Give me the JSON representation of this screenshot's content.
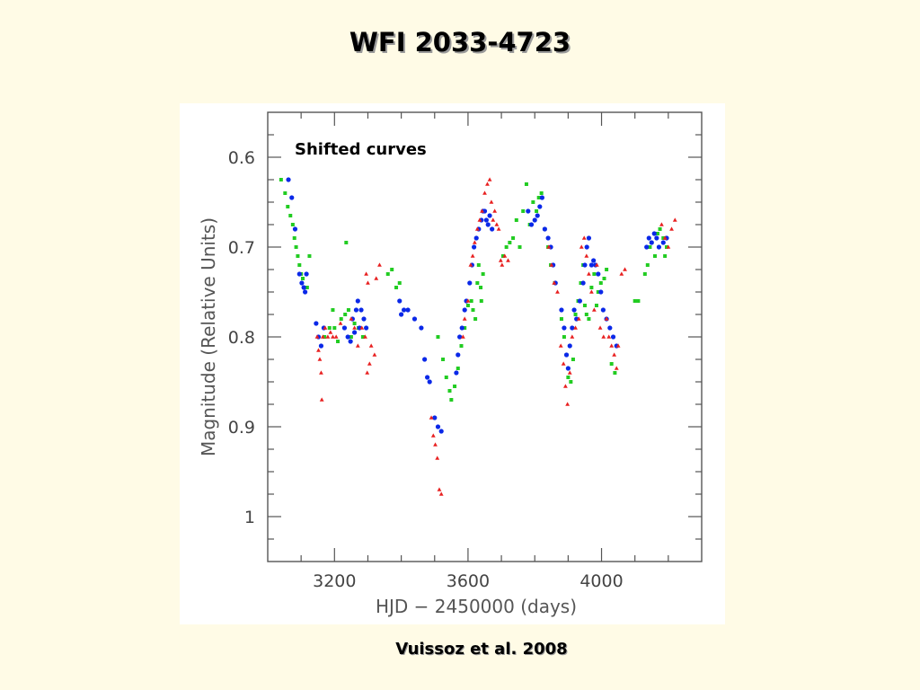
{
  "slide": {
    "title": "WFI 2033-4723",
    "citation": "Vuissoz et al. 2008"
  },
  "chart_data": {
    "type": "scatter",
    "title": "",
    "annotation": "Shifted curves",
    "xlabel": "HJD − 2450000 (days)",
    "ylabel": "Magnitude (Relative Units)",
    "xlim": [
      3000,
      4300
    ],
    "ylim": [
      0.55,
      1.05
    ],
    "y_inverted": true,
    "x_ticks": [
      3200,
      3600,
      4000
    ],
    "x_tick_labels": [
      "3200",
      "3600",
      "4000"
    ],
    "y_ticks": [
      0.6,
      0.7,
      0.8,
      0.9,
      1.0
    ],
    "y_tick_labels": [
      "0.6",
      "0.7",
      "0.8",
      "0.9",
      "1"
    ],
    "grid": false,
    "legend": "none",
    "series": [
      {
        "color": "#22cc22",
        "marker": "square",
        "points": [
          [
            3040,
            0.625
          ],
          [
            3052,
            0.64
          ],
          [
            3060,
            0.655
          ],
          [
            3068,
            0.665
          ],
          [
            3075,
            0.675
          ],
          [
            3080,
            0.69
          ],
          [
            3085,
            0.7
          ],
          [
            3090,
            0.71
          ],
          [
            3095,
            0.72
          ],
          [
            3100,
            0.73
          ],
          [
            3105,
            0.735
          ],
          [
            3110,
            0.745
          ],
          [
            3118,
            0.745
          ],
          [
            3125,
            0.71
          ],
          [
            3170,
            0.8
          ],
          [
            3185,
            0.79
          ],
          [
            3195,
            0.77
          ],
          [
            3200,
            0.79
          ],
          [
            3210,
            0.805
          ],
          [
            3220,
            0.78
          ],
          [
            3232,
            0.775
          ],
          [
            3242,
            0.77
          ],
          [
            3250,
            0.8
          ],
          [
            3260,
            0.785
          ],
          [
            3272,
            0.79
          ],
          [
            3285,
            0.8
          ],
          [
            3235,
            0.695
          ],
          [
            3360,
            0.73
          ],
          [
            3372,
            0.725
          ],
          [
            3385,
            0.745
          ],
          [
            3395,
            0.74
          ],
          [
            3510,
            0.8
          ],
          [
            3525,
            0.825
          ],
          [
            3535,
            0.845
          ],
          [
            3545,
            0.86
          ],
          [
            3550,
            0.87
          ],
          [
            3560,
            0.855
          ],
          [
            3570,
            0.835
          ],
          [
            3580,
            0.81
          ],
          [
            3590,
            0.79
          ],
          [
            3600,
            0.765
          ],
          [
            3610,
            0.76
          ],
          [
            3615,
            0.77
          ],
          [
            3622,
            0.78
          ],
          [
            3628,
            0.74
          ],
          [
            3632,
            0.72
          ],
          [
            3638,
            0.745
          ],
          [
            3640,
            0.76
          ],
          [
            3645,
            0.73
          ],
          [
            3705,
            0.71
          ],
          [
            3715,
            0.7
          ],
          [
            3725,
            0.695
          ],
          [
            3735,
            0.69
          ],
          [
            3745,
            0.67
          ],
          [
            3755,
            0.7
          ],
          [
            3765,
            0.66
          ],
          [
            3775,
            0.63
          ],
          [
            3785,
            0.675
          ],
          [
            3795,
            0.65
          ],
          [
            3805,
            0.66
          ],
          [
            3812,
            0.645
          ],
          [
            3820,
            0.64
          ],
          [
            3830,
            0.68
          ],
          [
            3840,
            0.7
          ],
          [
            3848,
            0.72
          ],
          [
            3860,
            0.74
          ],
          [
            3880,
            0.78
          ],
          [
            3888,
            0.8
          ],
          [
            3895,
            0.82
          ],
          [
            3900,
            0.845
          ],
          [
            3908,
            0.85
          ],
          [
            3915,
            0.825
          ],
          [
            3922,
            0.775
          ],
          [
            3930,
            0.76
          ],
          [
            3938,
            0.74
          ],
          [
            3945,
            0.72
          ],
          [
            3950,
            0.765
          ],
          [
            3955,
            0.775
          ],
          [
            3962,
            0.78
          ],
          [
            3970,
            0.745
          ],
          [
            3978,
            0.73
          ],
          [
            3985,
            0.765
          ],
          [
            3990,
            0.75
          ],
          [
            3998,
            0.74
          ],
          [
            4008,
            0.735
          ],
          [
            4015,
            0.725
          ],
          [
            4030,
            0.83
          ],
          [
            4040,
            0.84
          ],
          [
            4100,
            0.76
          ],
          [
            4110,
            0.76
          ],
          [
            4130,
            0.73
          ],
          [
            4138,
            0.72
          ],
          [
            4145,
            0.7
          ],
          [
            4150,
            0.695
          ],
          [
            4160,
            0.71
          ],
          [
            4168,
            0.685
          ],
          [
            4175,
            0.68
          ],
          [
            4185,
            0.69
          ],
          [
            4190,
            0.71
          ],
          [
            4195,
            0.7
          ]
        ]
      },
      {
        "color": "#0a28e8",
        "marker": "circle",
        "points": [
          [
            3062,
            0.625
          ],
          [
            3072,
            0.645
          ],
          [
            3082,
            0.68
          ],
          [
            3095,
            0.73
          ],
          [
            3102,
            0.74
          ],
          [
            3108,
            0.745
          ],
          [
            3112,
            0.75
          ],
          [
            3116,
            0.73
          ],
          [
            3145,
            0.785
          ],
          [
            3152,
            0.8
          ],
          [
            3160,
            0.81
          ],
          [
            3168,
            0.79
          ],
          [
            3230,
            0.79
          ],
          [
            3240,
            0.8
          ],
          [
            3248,
            0.805
          ],
          [
            3254,
            0.78
          ],
          [
            3260,
            0.795
          ],
          [
            3265,
            0.77
          ],
          [
            3270,
            0.76
          ],
          [
            3275,
            0.79
          ],
          [
            3280,
            0.77
          ],
          [
            3288,
            0.78
          ],
          [
            3295,
            0.79
          ],
          [
            3395,
            0.76
          ],
          [
            3400,
            0.775
          ],
          [
            3408,
            0.77
          ],
          [
            3420,
            0.77
          ],
          [
            3440,
            0.78
          ],
          [
            3460,
            0.79
          ],
          [
            3470,
            0.825
          ],
          [
            3478,
            0.845
          ],
          [
            3485,
            0.85
          ],
          [
            3500,
            0.89
          ],
          [
            3510,
            0.9
          ],
          [
            3520,
            0.905
          ],
          [
            3565,
            0.84
          ],
          [
            3570,
            0.82
          ],
          [
            3575,
            0.8
          ],
          [
            3582,
            0.79
          ],
          [
            3590,
            0.77
          ],
          [
            3595,
            0.76
          ],
          [
            3605,
            0.74
          ],
          [
            3612,
            0.72
          ],
          [
            3618,
            0.7
          ],
          [
            3625,
            0.69
          ],
          [
            3632,
            0.68
          ],
          [
            3640,
            0.67
          ],
          [
            3645,
            0.66
          ],
          [
            3650,
            0.66
          ],
          [
            3655,
            0.67
          ],
          [
            3660,
            0.675
          ],
          [
            3665,
            0.665
          ],
          [
            3672,
            0.68
          ],
          [
            3780,
            0.66
          ],
          [
            3790,
            0.675
          ],
          [
            3800,
            0.67
          ],
          [
            3808,
            0.665
          ],
          [
            3815,
            0.655
          ],
          [
            3822,
            0.645
          ],
          [
            3830,
            0.68
          ],
          [
            3840,
            0.69
          ],
          [
            3848,
            0.7
          ],
          [
            3855,
            0.72
          ],
          [
            3862,
            0.74
          ],
          [
            3880,
            0.77
          ],
          [
            3888,
            0.79
          ],
          [
            3895,
            0.82
          ],
          [
            3900,
            0.835
          ],
          [
            3905,
            0.81
          ],
          [
            3912,
            0.79
          ],
          [
            3918,
            0.77
          ],
          [
            3925,
            0.78
          ],
          [
            3935,
            0.76
          ],
          [
            3945,
            0.74
          ],
          [
            3950,
            0.72
          ],
          [
            3956,
            0.7
          ],
          [
            3962,
            0.69
          ],
          [
            3970,
            0.72
          ],
          [
            3976,
            0.715
          ],
          [
            3982,
            0.72
          ],
          [
            3990,
            0.73
          ],
          [
            3998,
            0.75
          ],
          [
            4005,
            0.77
          ],
          [
            4015,
            0.78
          ],
          [
            4025,
            0.79
          ],
          [
            4035,
            0.8
          ],
          [
            4045,
            0.81
          ],
          [
            4135,
            0.7
          ],
          [
            4142,
            0.69
          ],
          [
            4150,
            0.695
          ],
          [
            4158,
            0.685
          ],
          [
            4165,
            0.69
          ],
          [
            4172,
            0.7
          ],
          [
            4185,
            0.695
          ],
          [
            4195,
            0.69
          ]
        ]
      },
      {
        "color": "#e82020",
        "marker": "triangle",
        "points": [
          [
            3148,
            0.8
          ],
          [
            3152,
            0.815
          ],
          [
            3156,
            0.825
          ],
          [
            3160,
            0.84
          ],
          [
            3162,
            0.87
          ],
          [
            3165,
            0.8
          ],
          [
            3172,
            0.79
          ],
          [
            3180,
            0.8
          ],
          [
            3188,
            0.795
          ],
          [
            3195,
            0.8
          ],
          [
            3205,
            0.8
          ],
          [
            3218,
            0.785
          ],
          [
            3250,
            0.78
          ],
          [
            3260,
            0.79
          ],
          [
            3270,
            0.81
          ],
          [
            3282,
            0.79
          ],
          [
            3292,
            0.8
          ],
          [
            3298,
            0.84
          ],
          [
            3305,
            0.83
          ],
          [
            3310,
            0.81
          ],
          [
            3320,
            0.82
          ],
          [
            3325,
            0.735
          ],
          [
            3335,
            0.72
          ],
          [
            3295,
            0.73
          ],
          [
            3300,
            0.74
          ],
          [
            3490,
            0.89
          ],
          [
            3496,
            0.91
          ],
          [
            3502,
            0.92
          ],
          [
            3508,
            0.935
          ],
          [
            3514,
            0.97
          ],
          [
            3520,
            0.975
          ],
          [
            3585,
            0.8
          ],
          [
            3590,
            0.78
          ],
          [
            3600,
            0.76
          ],
          [
            3608,
            0.72
          ],
          [
            3614,
            0.71
          ],
          [
            3620,
            0.695
          ],
          [
            3628,
            0.68
          ],
          [
            3635,
            0.67
          ],
          [
            3642,
            0.66
          ],
          [
            3650,
            0.64
          ],
          [
            3658,
            0.63
          ],
          [
            3665,
            0.625
          ],
          [
            3670,
            0.65
          ],
          [
            3675,
            0.67
          ],
          [
            3680,
            0.66
          ],
          [
            3686,
            0.675
          ],
          [
            3692,
            0.68
          ],
          [
            3698,
            0.715
          ],
          [
            3702,
            0.72
          ],
          [
            3710,
            0.71
          ],
          [
            3720,
            0.715
          ],
          [
            3842,
            0.7
          ],
          [
            3850,
            0.72
          ],
          [
            3858,
            0.74
          ],
          [
            3868,
            0.75
          ],
          [
            3878,
            0.81
          ],
          [
            3886,
            0.83
          ],
          [
            3892,
            0.855
          ],
          [
            3898,
            0.875
          ],
          [
            3905,
            0.84
          ],
          [
            3912,
            0.8
          ],
          [
            3922,
            0.79
          ],
          [
            3932,
            0.78
          ],
          [
            3940,
            0.7
          ],
          [
            3948,
            0.69
          ],
          [
            3955,
            0.71
          ],
          [
            3962,
            0.73
          ],
          [
            3970,
            0.75
          ],
          [
            3978,
            0.77
          ],
          [
            3986,
            0.72
          ],
          [
            3996,
            0.79
          ],
          [
            4006,
            0.8
          ],
          [
            4015,
            0.78
          ],
          [
            4022,
            0.8
          ],
          [
            4030,
            0.81
          ],
          [
            4038,
            0.82
          ],
          [
            4045,
            0.835
          ],
          [
            4050,
            0.81
          ],
          [
            4060,
            0.73
          ],
          [
            4070,
            0.725
          ],
          [
            4180,
            0.675
          ],
          [
            4190,
            0.69
          ],
          [
            4200,
            0.7
          ],
          [
            4210,
            0.68
          ],
          [
            4220,
            0.67
          ]
        ]
      }
    ]
  }
}
